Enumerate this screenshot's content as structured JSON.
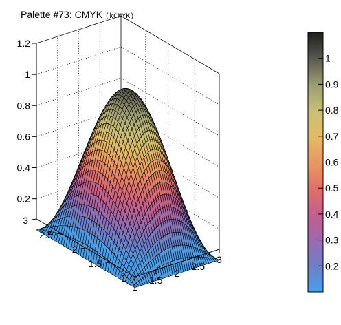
{
  "chart_data": {
    "type": "surface",
    "title": "Palette #73: CMYK",
    "title_suffix": "(kCMYK)",
    "xlabel": "",
    "ylabel": "",
    "zlabel": "",
    "x_range": [
      1,
      3
    ],
    "y_range": [
      1,
      3
    ],
    "z_range": [
      0.07,
      1.2
    ],
    "x_ticks": [
      1,
      1.5,
      2,
      2.5,
      3
    ],
    "x_tick_labels": [
      "1",
      "1.5",
      "2",
      "2.5",
      "3"
    ],
    "y_ticks": [
      1,
      1.5,
      2,
      2.5,
      3
    ],
    "y_tick_labels": [
      "1",
      "1.5",
      "2",
      "2.5",
      "3"
    ],
    "z_ticks": [
      0.2,
      0.4,
      0.6,
      0.8,
      1.0,
      1.2
    ],
    "z_tick_labels": [
      "0.2",
      "0.4",
      "0.6",
      "0.8",
      "1",
      "1.2"
    ],
    "function": "z = sin(pi*(x-1)/2) * sin(pi*(y-1)/2)",
    "grid_points": 40,
    "grid": true,
    "palette": [
      "#4a9fe8",
      "#6d80c8",
      "#9a6ab0",
      "#c45e8c",
      "#e0706a",
      "#e99860",
      "#e3bc64",
      "#c8c076",
      "#9a9c74",
      "#5a5a50",
      "#1e1e1e"
    ],
    "colorbar": {
      "min": 0.1,
      "max": 1.1,
      "ticks": [
        0.2,
        0.3,
        0.4,
        0.5,
        0.6,
        0.7,
        0.8,
        0.9,
        1
      ],
      "tick_labels": [
        "0.2",
        "0.3",
        "0.4",
        "0.5",
        "0.6",
        "0.7",
        "0.8",
        "0.9",
        "1"
      ]
    }
  }
}
